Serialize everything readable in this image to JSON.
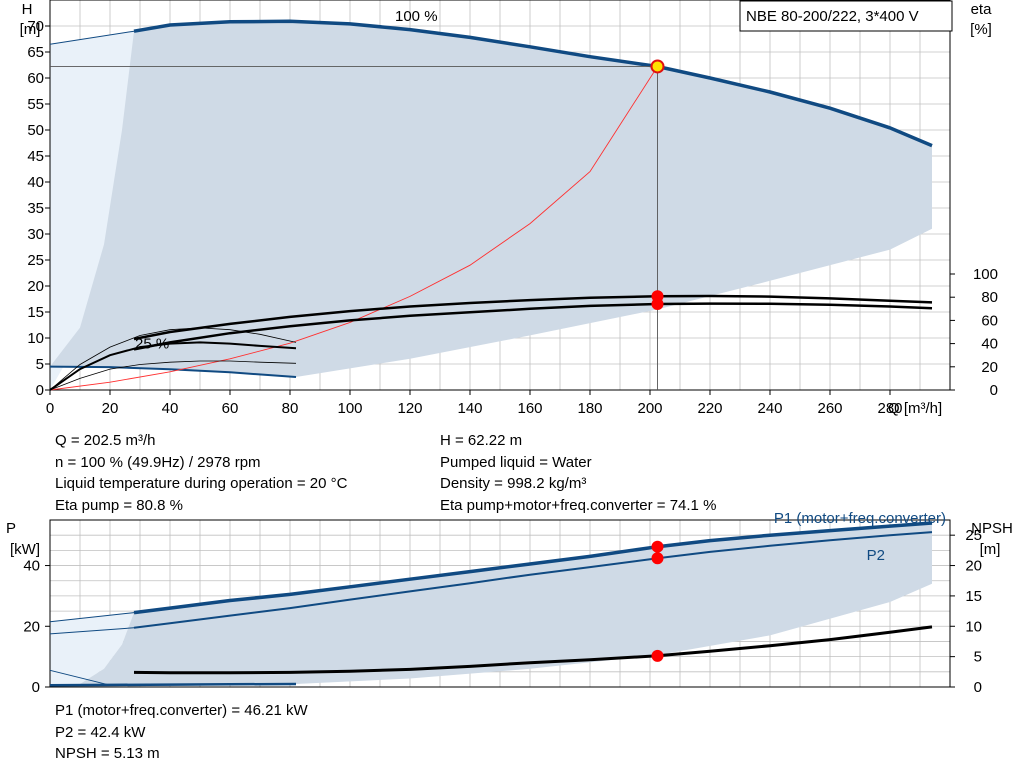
{
  "title_box": "NBE 80-200/222, 3*400 V",
  "info_upper_left": [
    "Q = 202.5 m³/h",
    "n = 100 % (49.9Hz) / 2978 rpm",
    "Liquid temperature during operation = 20 °C",
    "Eta pump = 80.8 %"
  ],
  "info_upper_right": [
    "H = 62.22 m",
    "Pumped liquid = Water",
    "Density = 998.2 kg/m³",
    "Eta pump+motor+freq.converter = 74.1 %"
  ],
  "info_lower": [
    "P1 (motor+freq.converter) = 46.21 kW",
    "P2 = 42.4 kW",
    "NPSH = 5.13 m"
  ],
  "colors": {
    "curve_blue": "#104a82",
    "area": "#cfdae6",
    "area_light": "#e9f1f9",
    "grid": "#c0c0c0",
    "duty_point": "#ff0000",
    "system_curve": "#ff3030",
    "eta_curve": "#000000"
  },
  "chart_data": [
    {
      "type": "line",
      "name": "head-and-efficiency",
      "x_axis": {
        "label": "Q [m³/h]",
        "range": [
          0,
          300
        ],
        "ticks": [
          0,
          20,
          40,
          60,
          80,
          100,
          120,
          140,
          160,
          180,
          200,
          220,
          240,
          260,
          280
        ]
      },
      "y_left": {
        "label_line1": "H",
        "label_line2": "[m]",
        "range": [
          0,
          75
        ],
        "ticks": [
          0,
          5,
          10,
          15,
          20,
          25,
          30,
          35,
          40,
          45,
          50,
          55,
          60,
          65,
          70
        ]
      },
      "y_right": {
        "label_line1": "eta",
        "label_line2": "[%]",
        "range": [
          0,
          100
        ],
        "ticks": [
          0,
          20,
          40,
          60,
          80,
          100
        ]
      },
      "grid": true,
      "annotations": [
        {
          "text": "100 %",
          "x": 115,
          "y": 71
        },
        {
          "text": "25 %",
          "x": 30,
          "y": 8
        }
      ],
      "head_100": {
        "x": [
          28,
          40,
          60,
          80,
          100,
          120,
          140,
          160,
          180,
          202.5,
          220,
          240,
          260,
          280,
          294
        ],
        "y": [
          69,
          70.2,
          70.8,
          70.9,
          70.4,
          69.3,
          67.8,
          66,
          64.1,
          62.22,
          60,
          57.3,
          54.2,
          50.4,
          47
        ]
      },
      "head_25": {
        "x": [
          0,
          20,
          40,
          60,
          82
        ],
        "y": [
          4.5,
          4.4,
          4.0,
          3.4,
          2.5
        ]
      },
      "head_min_extrap": {
        "x": [
          0,
          28
        ],
        "y": [
          66.5,
          69
        ]
      },
      "area_lower_boundary": {
        "x": [
          82,
          120,
          160,
          202.5,
          240,
          280,
          294
        ],
        "y": [
          2.5,
          6,
          10.5,
          15.5,
          21,
          27,
          31
        ]
      },
      "system_curve": {
        "x": [
          0,
          20,
          40,
          60,
          80,
          100,
          120,
          140,
          160,
          180,
          202.5
        ],
        "y": [
          0,
          1.5,
          3.5,
          6,
          9,
          13,
          18,
          24,
          32,
          42,
          62.22
        ]
      },
      "eta_pump": {
        "x": [
          28,
          40,
          60,
          80,
          100,
          120,
          140,
          160,
          180,
          202.5,
          220,
          240,
          260,
          280,
          294
        ],
        "y": [
          44,
          50,
          57,
          63,
          68,
          72,
          75,
          77.5,
          79.5,
          80.8,
          81,
          80.5,
          79,
          77,
          75.5
        ]
      },
      "eta_total": {
        "x": [
          28,
          40,
          60,
          80,
          100,
          120,
          140,
          160,
          180,
          202.5,
          220,
          240,
          260,
          280,
          294
        ],
        "y": [
          35,
          41,
          49,
          55,
          60,
          64,
          67,
          70,
          72.5,
          74.1,
          74.5,
          74.3,
          73.5,
          72,
          70.5
        ]
      },
      "eta_pump_25": {
        "x": [
          0,
          10,
          20,
          30,
          40,
          50,
          60,
          70,
          82
        ],
        "y": [
          0,
          18,
          30,
          37,
          40,
          41,
          40,
          38,
          36
        ]
      },
      "eta_total_25": {
        "x": [
          0,
          10,
          20,
          30,
          40,
          50,
          60,
          70,
          82
        ],
        "y": [
          0,
          10,
          18,
          22,
          24,
          25,
          25,
          24,
          23
        ]
      },
      "eta_thin_peak": {
        "x": [
          0,
          10,
          20,
          30,
          40,
          50,
          60,
          70,
          82
        ],
        "y": [
          0,
          22,
          37,
          47,
          52,
          53.5,
          52,
          48,
          41
        ]
      },
      "duty_point": {
        "x": 202.5,
        "head": 62.22,
        "eta_pump": 80.8,
        "eta_total": 74.1
      }
    },
    {
      "type": "line",
      "name": "power-and-npsh",
      "x_axis": {
        "range": [
          0,
          300
        ]
      },
      "y_left": {
        "label_line1": "P",
        "label_line2": "[kW]",
        "range": [
          0,
          55
        ],
        "ticks": [
          0,
          20,
          40
        ]
      },
      "y_right": {
        "label_line1": "NPSH",
        "label_line2": "[m]",
        "range": [
          0,
          27.5
        ],
        "ticks": [
          0,
          5,
          10,
          15,
          20,
          25
        ]
      },
      "grid": true,
      "legend_labels": [
        "P1 (motor+freq.converter)",
        "P2"
      ],
      "p1": {
        "x": [
          28,
          40,
          60,
          80,
          100,
          120,
          140,
          160,
          180,
          202.5,
          220,
          240,
          260,
          280,
          294
        ],
        "y": [
          24.5,
          26,
          28.5,
          30.5,
          33,
          35.5,
          38,
          40.5,
          43,
          46.21,
          48.2,
          50,
          51.5,
          53,
          54
        ]
      },
      "p2": {
        "x": [
          28,
          40,
          60,
          80,
          100,
          120,
          140,
          160,
          180,
          202.5,
          220,
          240,
          260,
          280,
          294
        ],
        "y": [
          19.5,
          21,
          23.5,
          26,
          28.8,
          31.5,
          34.2,
          37,
          39.5,
          42.4,
          44.5,
          46.5,
          48.3,
          50,
          51
        ]
      },
      "p1_extrap": {
        "x": [
          0,
          28
        ],
        "y": [
          21.5,
          24.5
        ]
      },
      "p2_extrap": {
        "x": [
          0,
          28
        ],
        "y": [
          17.5,
          19.5
        ]
      },
      "p_25": {
        "x": [
          0,
          20,
          40,
          60,
          82
        ],
        "y": [
          0.6,
          0.7,
          0.8,
          0.9,
          1.0
        ]
      },
      "p_25_extrap": {
        "x": [
          0,
          20
        ],
        "y": [
          5.5,
          0.6
        ]
      },
      "area_lower_boundary": {
        "x": [
          0,
          40,
          82,
          120,
          160,
          202.5,
          240,
          280,
          294
        ],
        "y": [
          0,
          0.3,
          1,
          2.8,
          6,
          10.5,
          17,
          28,
          34
        ]
      },
      "npsh": {
        "x": [
          28,
          40,
          60,
          80,
          100,
          120,
          140,
          160,
          180,
          202.5,
          220,
          240,
          260,
          280,
          294
        ],
        "y": [
          2.4,
          2.35,
          2.35,
          2.4,
          2.6,
          2.9,
          3.4,
          4.0,
          4.5,
          5.13,
          5.9,
          6.8,
          7.8,
          9.0,
          9.9
        ]
      },
      "duty_point": {
        "x": 202.5,
        "p1": 46.21,
        "p2": 42.4,
        "npsh": 5.13
      }
    }
  ]
}
